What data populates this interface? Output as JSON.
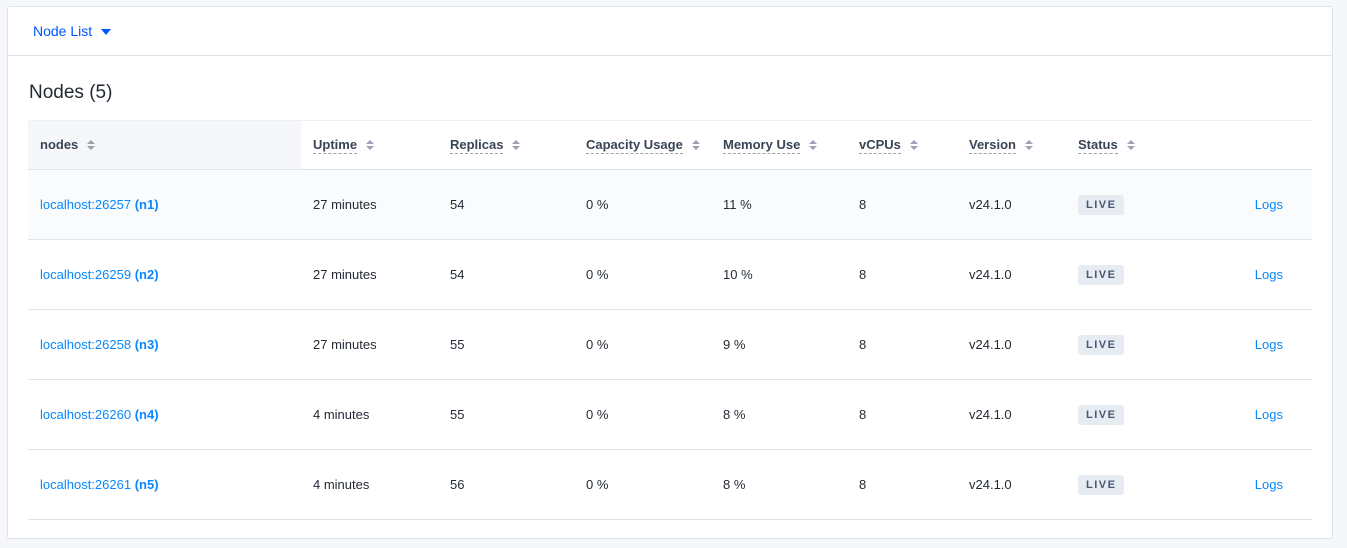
{
  "toolbar": {
    "dropdown_label": "Node List"
  },
  "page": {
    "title": "Nodes (5)"
  },
  "table": {
    "columns": [
      "nodes",
      "Uptime",
      "Replicas",
      "Capacity Usage",
      "Memory Use",
      "vCPUs",
      "Version",
      "Status"
    ],
    "rows": [
      {
        "address": "localhost:26257",
        "id": "(n1)",
        "uptime": "27 minutes",
        "replicas": "54",
        "capacity": "0 %",
        "memory": "11 %",
        "vcpus": "8",
        "version": "v24.1.0",
        "status": "LIVE",
        "logs": "Logs"
      },
      {
        "address": "localhost:26259",
        "id": "(n2)",
        "uptime": "27 minutes",
        "replicas": "54",
        "capacity": "0 %",
        "memory": "10 %",
        "vcpus": "8",
        "version": "v24.1.0",
        "status": "LIVE",
        "logs": "Logs"
      },
      {
        "address": "localhost:26258",
        "id": "(n3)",
        "uptime": "27 minutes",
        "replicas": "55",
        "capacity": "0 %",
        "memory": "9 %",
        "vcpus": "8",
        "version": "v24.1.0",
        "status": "LIVE",
        "logs": "Logs"
      },
      {
        "address": "localhost:26260",
        "id": "(n4)",
        "uptime": "4 minutes",
        "replicas": "55",
        "capacity": "0 %",
        "memory": "8 %",
        "vcpus": "8",
        "version": "v24.1.0",
        "status": "LIVE",
        "logs": "Logs"
      },
      {
        "address": "localhost:26261",
        "id": "(n5)",
        "uptime": "4 minutes",
        "replicas": "56",
        "capacity": "0 %",
        "memory": "8 %",
        "vcpus": "8",
        "version": "v24.1.0",
        "status": "LIVE",
        "logs": "Logs"
      }
    ]
  },
  "colors": {
    "link": "#0788ff",
    "accent": "#0055ff",
    "badge_bg": "#e7ecf3"
  }
}
